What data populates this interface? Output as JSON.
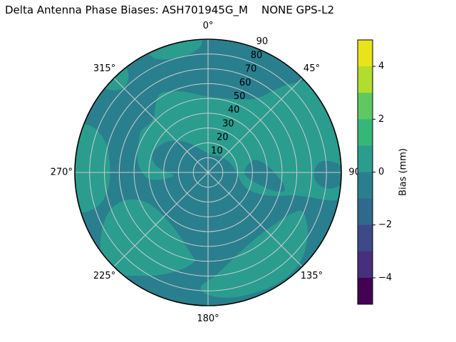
{
  "title": "Delta Antenna Phase Biases: ASH701945G_M    NONE GPS-L2",
  "chart_data": {
    "type": "heatmap",
    "projection": "polar",
    "title": "Delta Antenna Phase Biases: ASH701945G_M    NONE GPS-L2",
    "angular_unit": "degrees",
    "angular_direction": "clockwise",
    "zero_location": "top",
    "radial_range": [
      0,
      90
    ],
    "radial_label_angle": 22.5,
    "grid": true,
    "grid_color": "#cccccc",
    "outline_color": "#000000",
    "angular_ticks": [
      {
        "angle": 0,
        "label": "0°"
      },
      {
        "angle": 45,
        "label": "45°"
      },
      {
        "angle": 90,
        "label": "90"
      },
      {
        "angle": 135,
        "label": "135°"
      },
      {
        "angle": 180,
        "label": "180°"
      },
      {
        "angle": 225,
        "label": "225°"
      },
      {
        "angle": 270,
        "label": "270°"
      },
      {
        "angle": 315,
        "label": "315°"
      }
    ],
    "radial_ticks": [
      {
        "value": 10,
        "label": "10"
      },
      {
        "value": 20,
        "label": "20"
      },
      {
        "value": 30,
        "label": "30"
      },
      {
        "value": 40,
        "label": "40"
      },
      {
        "value": 50,
        "label": "50"
      },
      {
        "value": 60,
        "label": "60"
      },
      {
        "value": 70,
        "label": "70"
      },
      {
        "value": 80,
        "label": "80"
      },
      {
        "value": 90,
        "label": "90"
      }
    ],
    "bias_bands": {
      "light": {
        "range_mm": [
          0,
          1
        ],
        "color": "#2a9d8f"
      },
      "dark": {
        "range_mm": [
          -1,
          0
        ],
        "color": "#2a7f8e"
      }
    },
    "base_band": "dark",
    "regions": [
      {
        "name": "central-crescent",
        "band": "light",
        "points": [
          [
            262,
            40
          ],
          [
            270,
            45
          ],
          [
            278,
            48
          ],
          [
            286,
            50
          ],
          [
            294,
            51
          ],
          [
            302,
            54
          ],
          [
            310,
            51
          ],
          [
            316,
            52
          ],
          [
            322,
            58
          ],
          [
            328,
            63
          ],
          [
            334,
            61
          ],
          [
            341,
            58
          ],
          [
            348,
            55
          ],
          [
            355,
            52
          ],
          [
            2,
            51
          ],
          [
            10,
            51
          ],
          [
            18,
            52
          ],
          [
            26,
            55
          ],
          [
            32,
            58
          ],
          [
            36,
            64
          ],
          [
            39,
            72
          ],
          [
            42,
            80
          ],
          [
            45,
            86
          ],
          [
            47,
            91
          ],
          [
            55,
            93
          ],
          [
            65,
            93
          ],
          [
            75,
            93
          ],
          [
            85,
            93
          ],
          [
            95,
            93
          ],
          [
            103,
            93
          ],
          [
            104,
            62
          ],
          [
            108,
            52
          ],
          [
            112,
            42
          ],
          [
            114,
            33
          ],
          [
            112,
            27
          ],
          [
            106,
            23
          ],
          [
            98,
            21
          ],
          [
            90,
            19
          ],
          [
            82,
            18
          ],
          [
            73,
            17
          ],
          [
            64,
            16
          ],
          [
            55,
            15
          ],
          [
            46,
            14
          ],
          [
            37,
            14
          ],
          [
            28,
            13
          ],
          [
            19,
            12
          ],
          [
            10,
            12
          ],
          [
            1,
            13
          ],
          [
            352,
            14
          ],
          [
            343,
            16
          ],
          [
            334,
            20
          ],
          [
            325,
            25
          ],
          [
            316,
            30
          ],
          [
            307,
            35
          ],
          [
            298,
            38
          ],
          [
            290,
            40
          ],
          [
            283,
            39
          ],
          [
            276,
            35
          ],
          [
            270,
            28
          ],
          [
            265,
            22
          ],
          [
            261,
            28
          ]
        ]
      },
      {
        "name": "lower-left-band",
        "band": "light",
        "points": [
          [
            189,
            62
          ],
          [
            195,
            68
          ],
          [
            202,
            74
          ],
          [
            209,
            80
          ],
          [
            216,
            86
          ],
          [
            221,
            93
          ],
          [
            231,
            93
          ],
          [
            237,
            87
          ],
          [
            243,
            80
          ],
          [
            249,
            72
          ],
          [
            252,
            62
          ],
          [
            250,
            52
          ],
          [
            244,
            46
          ],
          [
            236,
            43
          ],
          [
            226,
            42
          ],
          [
            216,
            43
          ],
          [
            206,
            46
          ],
          [
            198,
            51
          ],
          [
            192,
            56
          ],
          [
            188,
            60
          ]
        ]
      },
      {
        "name": "left-rim-patch",
        "band": "light",
        "points": [
          [
            252,
            93
          ],
          [
            262,
            93
          ],
          [
            272,
            93
          ],
          [
            282,
            93
          ],
          [
            291,
            93
          ],
          [
            292,
            84
          ],
          [
            289,
            75
          ],
          [
            284,
            70
          ],
          [
            277,
            67
          ],
          [
            269,
            66
          ],
          [
            261,
            68
          ],
          [
            255,
            73
          ],
          [
            252,
            80
          ]
        ]
      },
      {
        "name": "top-left-rim-strip",
        "band": "light",
        "points": [
          [
            333,
            93
          ],
          [
            341,
            93
          ],
          [
            350,
            93
          ],
          [
            358,
            93
          ],
          [
            357,
            85
          ],
          [
            352,
            81
          ],
          [
            345,
            80
          ],
          [
            338,
            82
          ],
          [
            334,
            86
          ]
        ]
      },
      {
        "name": "spur-315",
        "band": "light",
        "points": [
          [
            308,
            93
          ],
          [
            311,
            84
          ],
          [
            315,
            80
          ],
          [
            320,
            83
          ],
          [
            322,
            88
          ],
          [
            322,
            93
          ],
          [
            315,
            93
          ]
        ]
      },
      {
        "name": "bottom-blob",
        "band": "light",
        "points": [
          [
            113,
            66
          ],
          [
            120,
            60
          ],
          [
            128,
            57
          ],
          [
            137,
            55
          ],
          [
            146,
            55
          ],
          [
            155,
            57
          ],
          [
            163,
            60
          ],
          [
            170,
            65
          ],
          [
            176,
            70
          ],
          [
            181,
            74
          ],
          [
            184,
            77
          ],
          [
            183,
            81
          ],
          [
            178,
            84
          ],
          [
            171,
            86
          ],
          [
            163,
            87
          ],
          [
            154,
            88
          ],
          [
            145,
            89
          ],
          [
            136,
            88
          ],
          [
            128,
            84
          ],
          [
            121,
            79
          ],
          [
            115,
            73
          ],
          [
            112,
            69
          ]
        ]
      },
      {
        "name": "right-inner-wedge",
        "band": "dark",
        "points": [
          [
            75,
            30
          ],
          [
            82,
            26
          ],
          [
            90,
            24
          ],
          [
            97,
            26
          ],
          [
            102,
            32
          ],
          [
            105,
            40
          ],
          [
            106,
            48
          ],
          [
            104,
            54
          ],
          [
            99,
            52
          ],
          [
            93,
            47
          ],
          [
            87,
            43
          ],
          [
            80,
            38
          ],
          [
            75,
            34
          ]
        ]
      },
      {
        "name": "right-rim-notch",
        "band": "dark",
        "points": [
          [
            86,
            73
          ],
          [
            92,
            71
          ],
          [
            96,
            74
          ],
          [
            98,
            80
          ],
          [
            97,
            87
          ],
          [
            94,
            93
          ],
          [
            88,
            93
          ],
          [
            85,
            85
          ],
          [
            84,
            78
          ]
        ]
      }
    ],
    "colorbar": {
      "label": "Bias (mm)",
      "min": -5,
      "max": 5,
      "ticks": [
        {
          "value": 4,
          "label": "4"
        },
        {
          "value": 2,
          "label": "2"
        },
        {
          "value": 0,
          "label": "0"
        },
        {
          "value": -2,
          "label": "−2"
        },
        {
          "value": -4,
          "label": "−4"
        }
      ],
      "band_colors_top_to_bottom": [
        "#e8e419",
        "#b0dd2f",
        "#5ec962",
        "#35b779",
        "#2a9d8f",
        "#2a7f8e",
        "#31688e",
        "#3e4989",
        "#472f7d",
        "#440154"
      ]
    }
  }
}
